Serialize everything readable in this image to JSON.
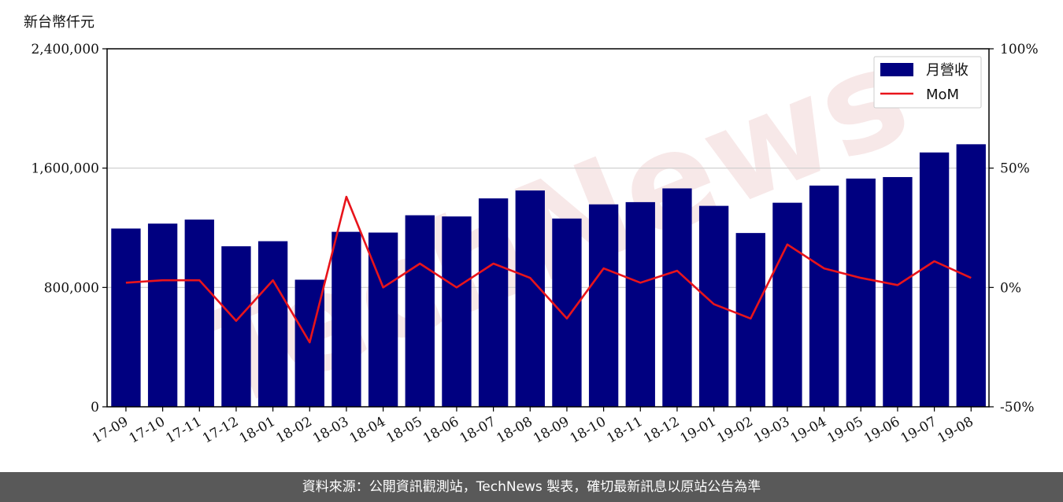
{
  "unit_label": "新台幣仟元",
  "watermark": "TechNews",
  "footer": "資料來源：公開資訊觀測站，TechNews 製表，確切最新訊息以原站公告為準",
  "colors": {
    "bar": "#000080",
    "line": "#e8141b",
    "grid": "#cccccc",
    "watermark": "#f2d6d6"
  },
  "chart_data": {
    "type": "bar",
    "categories": [
      "17-09",
      "17-10",
      "17-11",
      "17-12",
      "18-01",
      "18-02",
      "18-03",
      "18-04",
      "18-05",
      "18-06",
      "18-07",
      "18-08",
      "18-09",
      "18-10",
      "18-11",
      "18-12",
      "19-01",
      "19-02",
      "19-03",
      "19-04",
      "19-05",
      "19-06",
      "19-07",
      "19-08"
    ],
    "series": [
      {
        "name": "月營收",
        "type": "bar",
        "axis": "left",
        "values": [
          1195000,
          1228000,
          1255000,
          1076000,
          1110000,
          852000,
          1173000,
          1168000,
          1284000,
          1276000,
          1397000,
          1450000,
          1262000,
          1357000,
          1372000,
          1464000,
          1347000,
          1165000,
          1368000,
          1483000,
          1530000,
          1540000,
          1705000,
          1760000
        ]
      },
      {
        "name": "MoM",
        "type": "line",
        "axis": "right",
        "values": [
          2,
          3,
          3,
          -14,
          3,
          -23,
          38,
          0,
          10,
          0,
          10,
          4,
          -13,
          8,
          2,
          7,
          -7,
          -13,
          18,
          8,
          4,
          1,
          11,
          4
        ]
      }
    ],
    "y_left": {
      "ylim": [
        0,
        2400000
      ],
      "ticks": [
        "0",
        "800,000",
        "1,600,000",
        "2,400,000"
      ],
      "tick_values": [
        0,
        800000,
        1600000,
        2400000
      ]
    },
    "y_right": {
      "ylim": [
        -50,
        100
      ],
      "ticks": [
        "-50%",
        "0%",
        "50%",
        "100%"
      ],
      "tick_values": [
        -50,
        0,
        50,
        100
      ]
    },
    "grid": "horizontal",
    "legend": "top-right"
  }
}
